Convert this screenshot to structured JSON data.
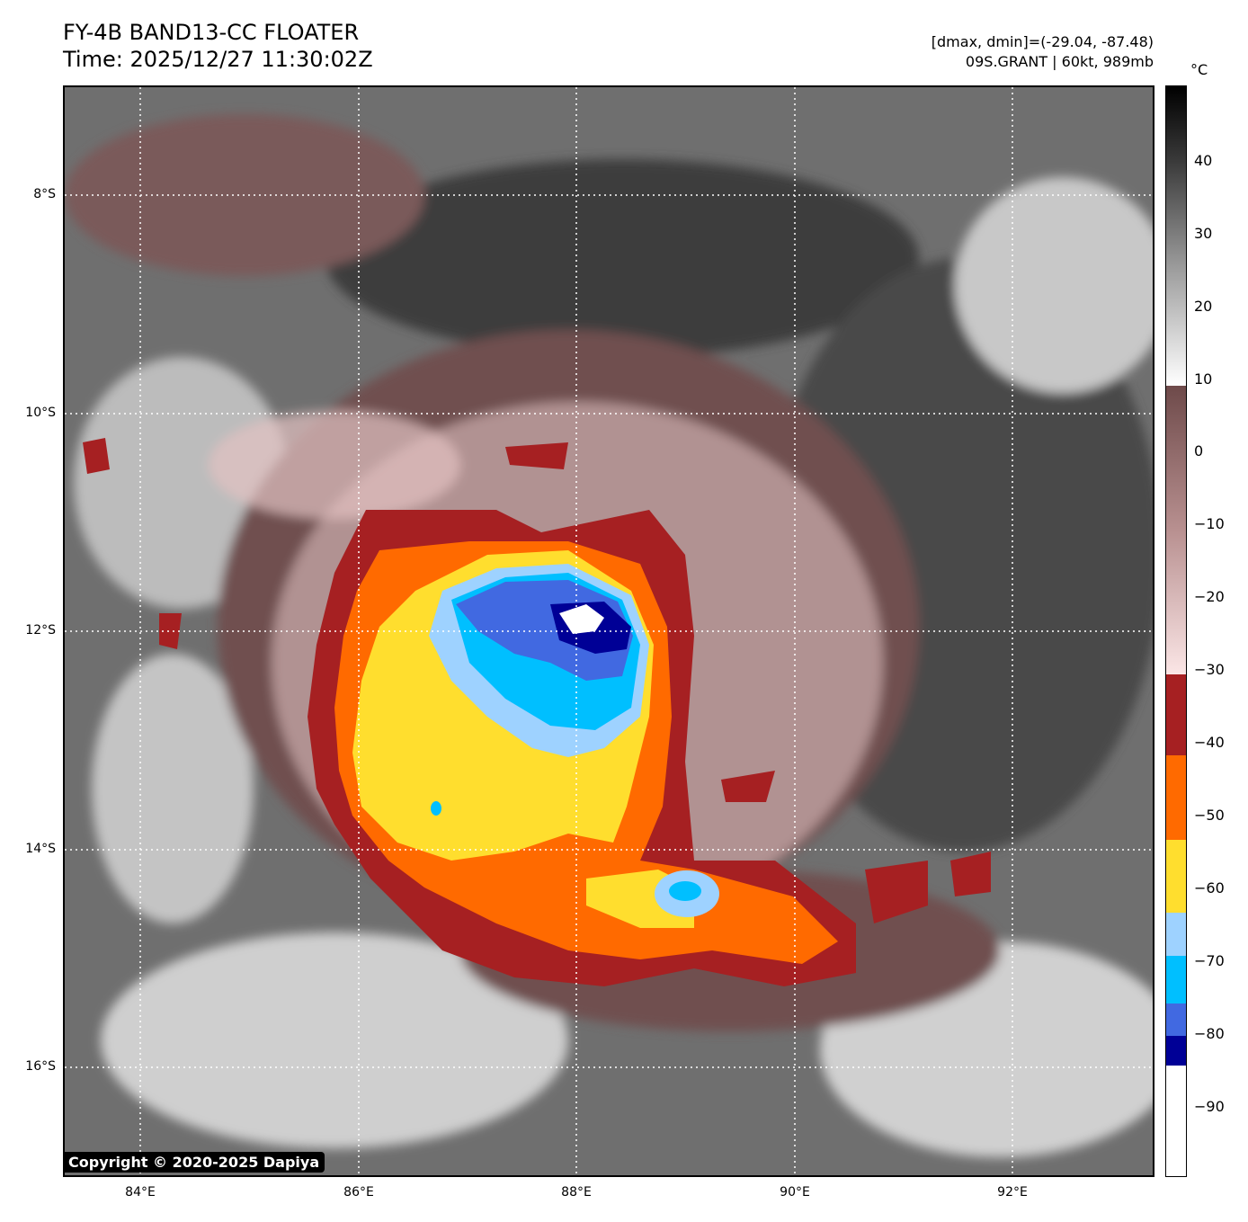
{
  "title": {
    "line1": "FY-4B BAND13-CC FLOATER",
    "line2": "Time: 2025/12/27 11:30:02Z"
  },
  "info": {
    "line1": "[dmax, dmin]=(-29.04, -87.48)",
    "line2": "09S.GRANT | 60kt, 989mb"
  },
  "map": {
    "lat_labels": [
      "8°S",
      "10°S",
      "12°S",
      "14°S",
      "16°S"
    ],
    "lon_labels": [
      "84°E",
      "86°E",
      "88°E",
      "90°E",
      "92°E"
    ],
    "lat_values": [
      -8,
      -10,
      -12,
      -14,
      -16
    ],
    "lon_values": [
      84,
      86,
      88,
      90,
      92
    ],
    "lon_range": [
      83.3,
      93.3
    ],
    "lat_range": [
      -6.99,
      -16.99
    ],
    "grid": "dotted white",
    "copyright": "Copyright © 2020-2025 Dapiya"
  },
  "colorbar": {
    "unit": "°C",
    "range": [
      -100,
      50
    ],
    "ticks": [
      "40",
      "30",
      "20",
      "10",
      "0",
      "−10",
      "−20",
      "−30",
      "−40",
      "−50",
      "−60",
      "−70",
      "−80",
      "−90"
    ],
    "tick_values": [
      40,
      30,
      20,
      10,
      0,
      -10,
      -20,
      -30,
      -40,
      -50,
      -60,
      -70,
      -80,
      -90
    ],
    "enhanced_bands": [
      {
        "from": -30,
        "to": -41,
        "color": "#a62022"
      },
      {
        "from": -41,
        "to": -52.5,
        "color": "#ff6a00"
      },
      {
        "from": -52.5,
        "to": -65,
        "color": "#ffde2e"
      },
      {
        "from": -65,
        "to": -71,
        "color": "#9ed2ff"
      },
      {
        "from": -71,
        "to": -77.5,
        "color": "#00bfff"
      },
      {
        "from": -77.5,
        "to": -82,
        "color": "#4169e1"
      },
      {
        "from": -82,
        "to": -86,
        "color": "#000096"
      },
      {
        "from": -86,
        "to": -100,
        "color": "#ffffff"
      }
    ]
  }
}
